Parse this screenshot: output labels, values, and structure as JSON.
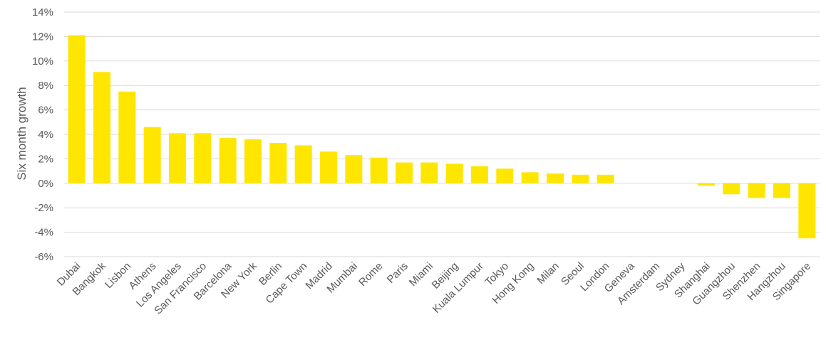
{
  "chart_data": {
    "type": "bar",
    "title": "",
    "xlabel": "",
    "ylabel": "Six month growth",
    "ylim": [
      -6,
      14
    ],
    "yticks": [
      -6,
      -4,
      -2,
      0,
      2,
      4,
      6,
      8,
      10,
      12,
      14
    ],
    "ytick_labels": [
      "-6%",
      "-4%",
      "-2%",
      "0%",
      "2%",
      "4%",
      "6%",
      "8%",
      "10%",
      "12%",
      "14%"
    ],
    "grid": true,
    "bar_color": "#FFE600",
    "categories": [
      "Dubai",
      "Bangkok",
      "Lisbon",
      "Athens",
      "Los Angeles",
      "San Francisco",
      "Barcelona",
      "New York",
      "Berlin",
      "Cape Town",
      "Madrid",
      "Mumbai",
      "Rome",
      "Paris",
      "Miami",
      "Beijing",
      "Kuala Lumpur",
      "Tokyo",
      "Hong Kong",
      "Milan",
      "Seoul",
      "London",
      "Geneva",
      "Amsterdam",
      "Sydney",
      "Shanghai",
      "Guangzhou",
      "Shenzhen",
      "Hangzhou",
      "Singapore"
    ],
    "values": [
      12.1,
      9.1,
      7.5,
      4.6,
      4.1,
      4.1,
      3.7,
      3.6,
      3.3,
      3.1,
      2.6,
      2.3,
      2.1,
      1.7,
      1.7,
      1.6,
      1.4,
      1.2,
      0.9,
      0.8,
      0.7,
      0.7,
      0,
      0,
      0,
      -0.2,
      -0.9,
      -1.2,
      -1.2,
      -4.5
    ]
  }
}
